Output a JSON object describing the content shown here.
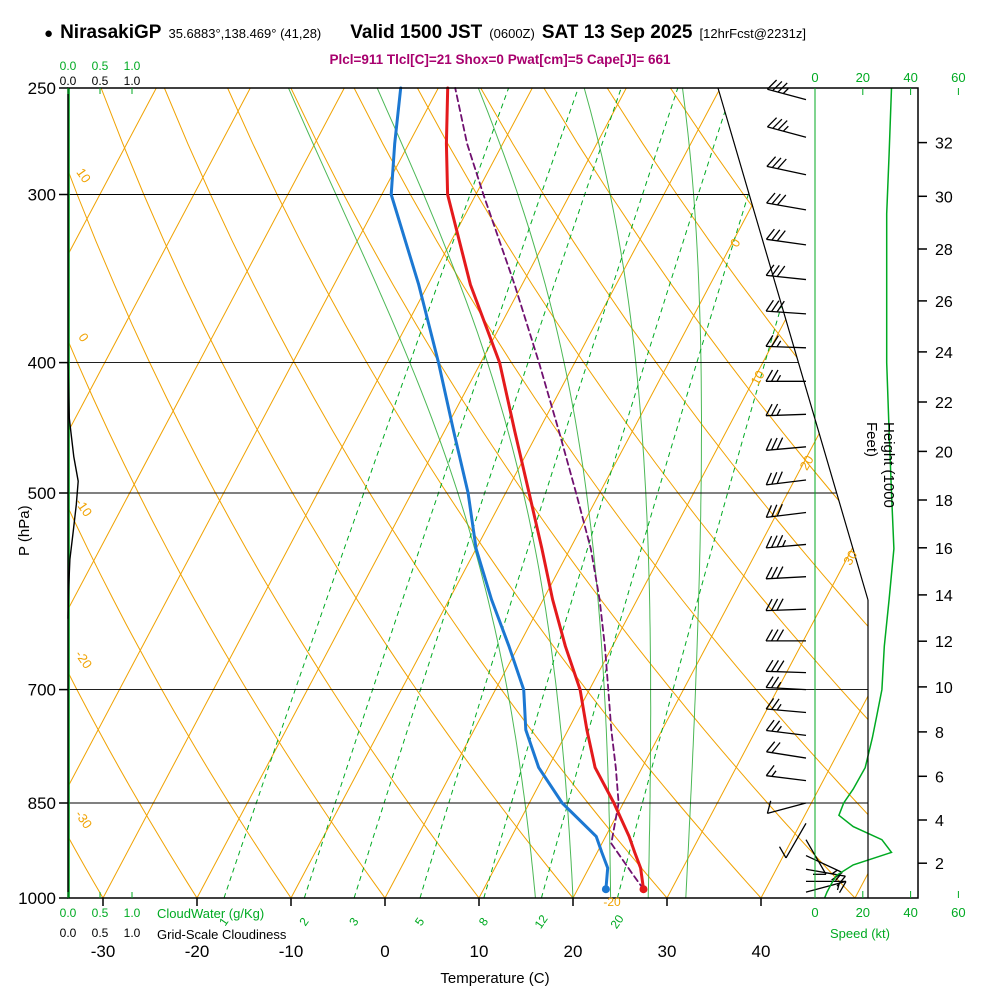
{
  "header": {
    "bullet": "●",
    "station": "NirasakiGP",
    "coords": "35.6883°,138.469° (41,28)",
    "valid": "Valid 1500 JST",
    "valid_z": "(0600Z)",
    "date": "SAT 13 Sep 2025",
    "fcst": "[12hrFcst@2231z]",
    "stats": "Plcl=911 Tlcl[C]=21 Shox=0 Pwat[cm]=5 Cape[J]= 661"
  },
  "axes": {
    "pressure": {
      "label": "P (hPa)",
      "ticks": [
        250,
        300,
        400,
        500,
        700,
        850,
        1000
      ]
    },
    "temperature": {
      "label": "Temperature (C)",
      "ticks": [
        -30,
        -20,
        -10,
        0,
        10,
        20,
        30,
        40
      ]
    },
    "height": {
      "label": "Height (1000 Feet)",
      "ticks": [
        2,
        4,
        6,
        8,
        10,
        12,
        14,
        16,
        18,
        20,
        22,
        24,
        26,
        28,
        30,
        32
      ]
    },
    "speed": {
      "label": "Speed (kt)",
      "ticks": [
        0,
        20,
        40,
        60
      ]
    },
    "cloud": {
      "scale": [
        "0.0",
        "0.5",
        "1.0"
      ],
      "cloudwater_label": "CloudWater (g/Kg)",
      "cloudiness_label": "Grid-Scale Cloudiness"
    }
  },
  "chart_data": {
    "type": "line",
    "subtype": "skew-t-log-p",
    "pressure_range_hpa": [
      250,
      1000
    ],
    "temp_axis_range_c": [
      -30,
      40
    ],
    "indices": {
      "plcl_hpa": 911,
      "tlcl_c": 21,
      "showalter": 0,
      "pwat_cm": 5,
      "cape_j": 661
    },
    "isotherm_labels_c": [
      0,
      10,
      20,
      30
    ],
    "dry_adiabat_labels_c": [
      10,
      0,
      -10,
      -20,
      -30
    ],
    "extra_lattice_label": "-20",
    "mixing_ratio_lines_g_per_kg": [
      1,
      2,
      3,
      5,
      8,
      12,
      20
    ],
    "moist_adiabats_c": [
      16,
      20,
      24,
      28,
      32
    ],
    "temperature_c": {
      "pressure_hpa": [
        250,
        275,
        300,
        350,
        400,
        450,
        500,
        550,
        600,
        650,
        700,
        750,
        800,
        850,
        900,
        925,
        950,
        985
      ],
      "temp_c": [
        -39,
        -36,
        -33,
        -25.5,
        -18,
        -12.5,
        -7.5,
        -3,
        1,
        5,
        9,
        12,
        15,
        19,
        22.5,
        24,
        25.5,
        27
      ]
    },
    "dewpoint_c": {
      "pressure_hpa": [
        250,
        275,
        300,
        350,
        400,
        450,
        500,
        550,
        600,
        650,
        700,
        750,
        800,
        850,
        900,
        925,
        950,
        985
      ],
      "temp_c": [
        -44,
        -41.5,
        -39,
        -31,
        -24.5,
        -19,
        -14,
        -10,
        -5.5,
        -1,
        3,
        5.5,
        9,
        13.5,
        19,
        20.5,
        22,
        23
      ]
    },
    "parcel_c": {
      "pressure_hpa": [
        985,
        960,
        911,
        850,
        800,
        750,
        700,
        650,
        600,
        550,
        500,
        450,
        400,
        350,
        300,
        275,
        250
      ],
      "temp_c": [
        27,
        25,
        21,
        19.5,
        17.2,
        14.6,
        12,
        9.2,
        6,
        2.2,
        -2.5,
        -7.8,
        -13.8,
        -20.8,
        -29.2,
        -33.8,
        -38.2
      ]
    },
    "wind_barbs": [
      {
        "p": 255,
        "dir": 285,
        "kt": 35
      },
      {
        "p": 272,
        "dir": 285,
        "kt": 35
      },
      {
        "p": 290,
        "dir": 282,
        "kt": 30
      },
      {
        "p": 308,
        "dir": 280,
        "kt": 30
      },
      {
        "p": 327,
        "dir": 278,
        "kt": 30
      },
      {
        "p": 347,
        "dir": 276,
        "kt": 30
      },
      {
        "p": 368,
        "dir": 274,
        "kt": 28
      },
      {
        "p": 390,
        "dir": 272,
        "kt": 25
      },
      {
        "p": 413,
        "dir": 270,
        "kt": 25
      },
      {
        "p": 437,
        "dir": 268,
        "kt": 26
      },
      {
        "p": 462,
        "dir": 265,
        "kt": 28
      },
      {
        "p": 489,
        "dir": 263,
        "kt": 30
      },
      {
        "p": 517,
        "dir": 263,
        "kt": 32
      },
      {
        "p": 546,
        "dir": 265,
        "kt": 33
      },
      {
        "p": 577,
        "dir": 267,
        "kt": 32
      },
      {
        "p": 610,
        "dir": 268,
        "kt": 30
      },
      {
        "p": 644,
        "dir": 270,
        "kt": 30
      },
      {
        "p": 680,
        "dir": 272,
        "kt": 28
      },
      {
        "p": 700,
        "dir": 273,
        "kt": 27
      },
      {
        "p": 728,
        "dir": 275,
        "kt": 26
      },
      {
        "p": 757,
        "dir": 277,
        "kt": 24
      },
      {
        "p": 787,
        "dir": 279,
        "kt": 22
      },
      {
        "p": 818,
        "dir": 277,
        "kt": 16
      },
      {
        "p": 850,
        "dir": 255,
        "kt": 10
      },
      {
        "p": 880,
        "dir": 210,
        "kt": 8
      },
      {
        "p": 905,
        "dir": 150,
        "kt": 10
      },
      {
        "p": 930,
        "dir": 115,
        "kt": 14
      },
      {
        "p": 952,
        "dir": 100,
        "kt": 16
      },
      {
        "p": 972,
        "dir": 90,
        "kt": 10
      },
      {
        "p": 990,
        "dir": 75,
        "kt": 6
      }
    ],
    "wind_speed_profile": {
      "pressure_hpa": [
        250,
        280,
        310,
        350,
        400,
        450,
        500,
        550,
        600,
        650,
        700,
        730,
        760,
        800,
        830,
        850,
        868,
        885,
        905,
        925,
        945,
        962,
        975,
        990,
        1000
      ],
      "kt": [
        32,
        31,
        30,
        30,
        30,
        31,
        32,
        33,
        31,
        29,
        28,
        26,
        24,
        21,
        16,
        12,
        10,
        16,
        28,
        32,
        16,
        9,
        7,
        5,
        4
      ]
    },
    "cloudiness_profile": {
      "pressure_hpa": [
        400,
        440,
        470,
        490,
        510,
        535,
        560,
        590,
        620
      ],
      "fraction": [
        0,
        0.02,
        0.09,
        0.16,
        0.13,
        0.08,
        0.03,
        0.01,
        0
      ]
    },
    "cloud_water_profile": {
      "pressure_hpa": [
        250,
        1000
      ],
      "g_per_kg": [
        0,
        0
      ]
    },
    "colors": {
      "temperature": "#e41a1c",
      "dewpoint": "#1c78d2",
      "parcel": "#701070",
      "lattice": "#f0a202",
      "green": "#00aa22",
      "moist": "#38b044",
      "stats": "#a8006e",
      "barbs": "#000000"
    }
  }
}
